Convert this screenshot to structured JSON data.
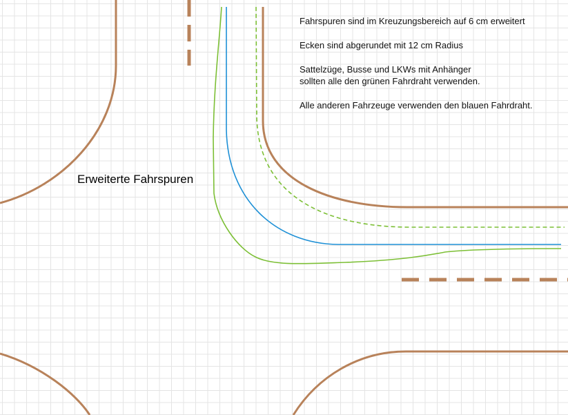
{
  "notes": [
    "Fahrspuren sind im Kreuzungsbereich auf 6 cm erweitert",
    "Ecken sind abgerundet mit 12 cm Radius",
    "Sattelzüge, Busse und LKWs mit Anhänger",
    "sollten alle den grünen Fahrdraht verwenden.",
    "Alle anderen Fahrzeuge verwenden den blauen Fahrdraht."
  ],
  "label": "Erweiterte Fahrspuren",
  "colors": {
    "road_edge": "#b8825a",
    "wire_blue": "#1e90d6",
    "wire_green": "#7cbf35",
    "grid": "#e4e4e4"
  }
}
